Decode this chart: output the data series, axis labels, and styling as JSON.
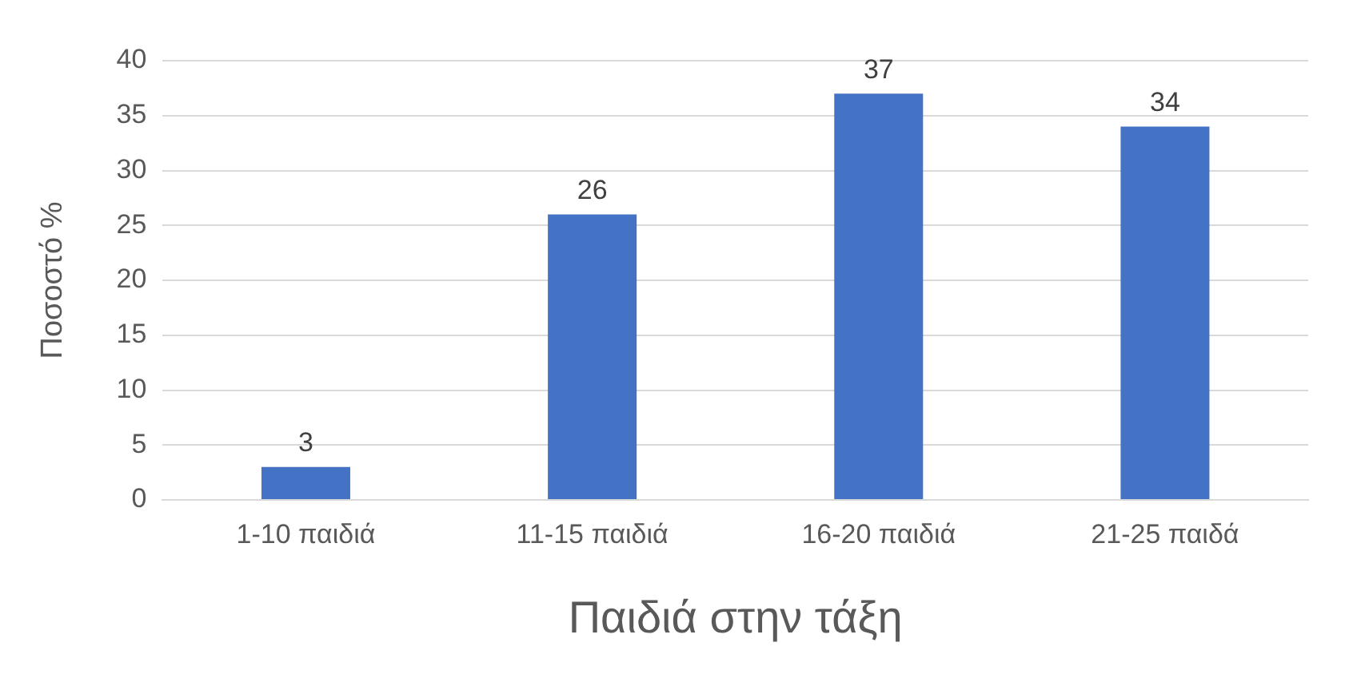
{
  "chart_data": {
    "type": "bar",
    "xlabel": "Παιδιά στην τάξη",
    "ylabel": "Ποσοστό %",
    "categories": [
      "1-10 παιδιά",
      "11-15 παιδιά",
      "16-20 παιδιά",
      "21-25 παιδά"
    ],
    "values": [
      3,
      26,
      37,
      34
    ],
    "color": "#4472c4",
    "ylim": [
      0,
      40
    ],
    "yticks": [
      0,
      5,
      10,
      15,
      20,
      25,
      30,
      35,
      40
    ],
    "grid": "y",
    "data_labels": true
  }
}
